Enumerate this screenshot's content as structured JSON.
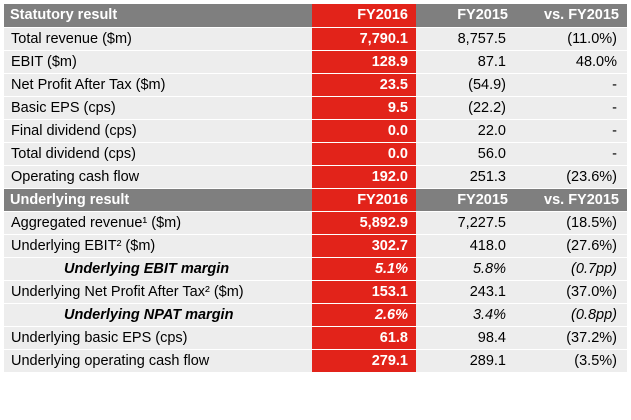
{
  "table": {
    "sections": [
      {
        "header": [
          "Statutory result",
          "FY2016",
          "FY2015",
          "vs. FY2015"
        ],
        "rows": [
          {
            "label": "Total revenue ($m)",
            "fy2016": "7,790.1",
            "fy2015": "8,757.5",
            "vs": "(11.0%)"
          },
          {
            "label": "EBIT ($m)",
            "fy2016": "128.9",
            "fy2015": "87.1",
            "vs": "48.0%"
          },
          {
            "label": "Net Profit After Tax ($m)",
            "fy2016": "23.5",
            "fy2015": "(54.9)",
            "vs": "-"
          },
          {
            "label": "Basic EPS (cps)",
            "fy2016": "9.5",
            "fy2015": "(22.2)",
            "vs": "-"
          },
          {
            "label": "Final dividend (cps)",
            "fy2016": "0.0",
            "fy2015": "22.0",
            "vs": "-"
          },
          {
            "label": "Total dividend (cps)",
            "fy2016": "0.0",
            "fy2015": "56.0",
            "vs": "-"
          },
          {
            "label": "Operating cash flow",
            "fy2016": "192.0",
            "fy2015": "251.3",
            "vs": "(23.6%)"
          }
        ]
      },
      {
        "header": [
          "Underlying result",
          "FY2016",
          "FY2015",
          "vs. FY2015"
        ],
        "rows": [
          {
            "label": "Aggregated revenue¹ ($m)",
            "fy2016": "5,892.9",
            "fy2015": "7,227.5",
            "vs": "(18.5%)"
          },
          {
            "label": "Underlying EBIT² ($m)",
            "fy2016": "302.7",
            "fy2015": "418.0",
            "vs": "(27.6%)"
          },
          {
            "label": "Underlying EBIT margin",
            "fy2016": "5.1%",
            "fy2015": "5.8%",
            "vs": "(0.7pp)",
            "italic": true
          },
          {
            "label": "Underlying Net Profit After Tax² ($m)",
            "fy2016": "153.1",
            "fy2015": "243.1",
            "vs": "(37.0%)"
          },
          {
            "label": "Underlying NPAT margin",
            "fy2016": "2.6%",
            "fy2015": "3.4%",
            "vs": "(0.8pp)",
            "italic": true
          },
          {
            "label": "Underlying basic EPS (cps)",
            "fy2016": "61.8",
            "fy2015": "98.4",
            "vs": "(37.2%)"
          },
          {
            "label": "Underlying operating cash flow",
            "fy2016": "279.1",
            "fy2015": "289.1",
            "vs": "(3.5%)"
          }
        ]
      }
    ]
  },
  "colors": {
    "header_bg": "#7f7f7f",
    "row_bg": "#ededed",
    "highlight": "#e2231a"
  }
}
